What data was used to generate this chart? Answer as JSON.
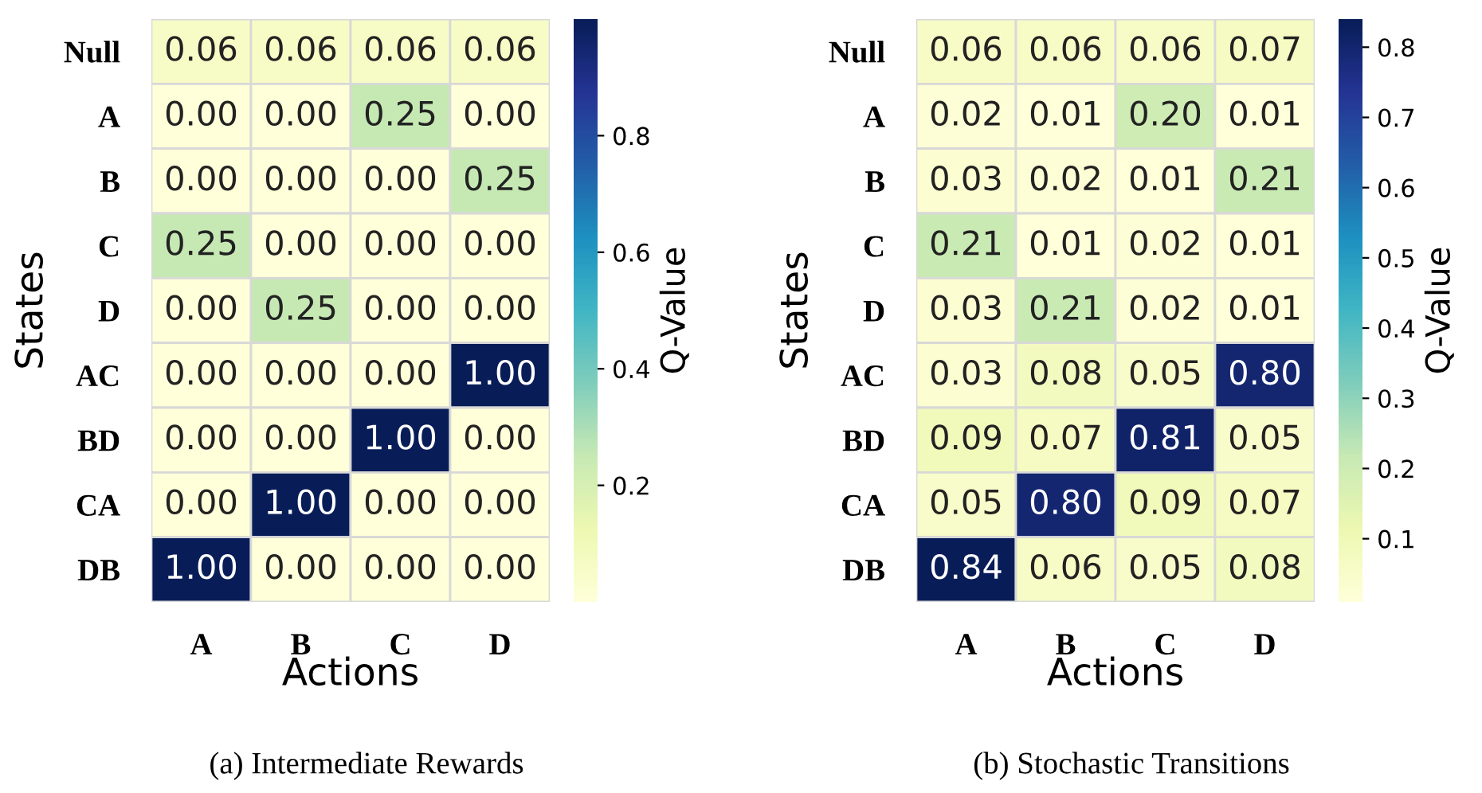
{
  "chart_data": [
    {
      "type": "heatmap",
      "title": null,
      "xlabel": "Actions",
      "ylabel": "States",
      "clabel": "Q-Value",
      "annotations": [
        "(a) Intermediate Rewards"
      ],
      "categories": [
        "A",
        "B",
        "C",
        "D"
      ],
      "y_categories": [
        "Null",
        "A",
        "B",
        "C",
        "D",
        "AC",
        "BD",
        "CA",
        "DB"
      ],
      "cells": [
        [
          0.06,
          0.06,
          0.06,
          0.06
        ],
        [
          0.0,
          0.0,
          0.25,
          0.0
        ],
        [
          0.0,
          0.0,
          0.0,
          0.25
        ],
        [
          0.25,
          0.0,
          0.0,
          0.0
        ],
        [
          0.0,
          0.25,
          0.0,
          0.0
        ],
        [
          0.0,
          0.0,
          0.0,
          1.0
        ],
        [
          0.0,
          0.0,
          1.0,
          0.0
        ],
        [
          0.0,
          1.0,
          0.0,
          0.0
        ],
        [
          1.0,
          0.0,
          0.0,
          0.0
        ]
      ],
      "cell_labels": [
        [
          "0.06",
          "0.06",
          "0.06",
          "0.06"
        ],
        [
          "0.00",
          "0.00",
          "0.25",
          "0.00"
        ],
        [
          "0.00",
          "0.00",
          "0.00",
          "0.25"
        ],
        [
          "0.25",
          "0.00",
          "0.00",
          "0.00"
        ],
        [
          "0.00",
          "0.25",
          "0.00",
          "0.00"
        ],
        [
          "0.00",
          "0.00",
          "0.00",
          "1.00"
        ],
        [
          "0.00",
          "0.00",
          "1.00",
          "0.00"
        ],
        [
          "0.00",
          "1.00",
          "0.00",
          "0.00"
        ],
        [
          "1.00",
          "0.00",
          "0.00",
          "0.00"
        ]
      ],
      "clim": [
        0,
        1
      ],
      "cticks": [
        0.2,
        0.4,
        0.6,
        0.8
      ]
    },
    {
      "type": "heatmap",
      "xlabel": "Actions",
      "ylabel": "States",
      "clabel": "Q-Value",
      "annotations": [
        "(b) Stochastic Transitions"
      ],
      "categories": [
        "A",
        "B",
        "C",
        "D"
      ],
      "y_categories": [
        "Null",
        "A",
        "B",
        "C",
        "D",
        "AC",
        "BD",
        "CA",
        "DB"
      ],
      "cells": [
        [
          0.06,
          0.06,
          0.06,
          0.07
        ],
        [
          0.02,
          0.01,
          0.2,
          0.01
        ],
        [
          0.03,
          0.02,
          0.01,
          0.21
        ],
        [
          0.21,
          0.01,
          0.02,
          0.01
        ],
        [
          0.03,
          0.21,
          0.02,
          0.01
        ],
        [
          0.03,
          0.08,
          0.05,
          0.8
        ],
        [
          0.09,
          0.07,
          0.81,
          0.05
        ],
        [
          0.05,
          0.8,
          0.09,
          0.07
        ],
        [
          0.84,
          0.06,
          0.05,
          0.08
        ]
      ],
      "cell_labels": [
        [
          "0.06",
          "0.06",
          "0.06",
          "0.07"
        ],
        [
          "0.02",
          "0.01",
          "0.20",
          "0.01"
        ],
        [
          "0.03",
          "0.02",
          "0.01",
          "0.21"
        ],
        [
          "0.21",
          "0.01",
          "0.02",
          "0.01"
        ],
        [
          "0.03",
          "0.21",
          "0.02",
          "0.01"
        ],
        [
          "0.03",
          "0.08",
          "0.05",
          "0.80"
        ],
        [
          "0.09",
          "0.07",
          "0.81",
          "0.05"
        ],
        [
          "0.05",
          "0.80",
          "0.09",
          "0.07"
        ],
        [
          "0.84",
          "0.06",
          "0.05",
          "0.08"
        ]
      ],
      "clim": [
        0.01,
        0.84
      ],
      "cticks": [
        0.1,
        0.2,
        0.3,
        0.4,
        0.5,
        0.6,
        0.7,
        0.8
      ]
    }
  ]
}
